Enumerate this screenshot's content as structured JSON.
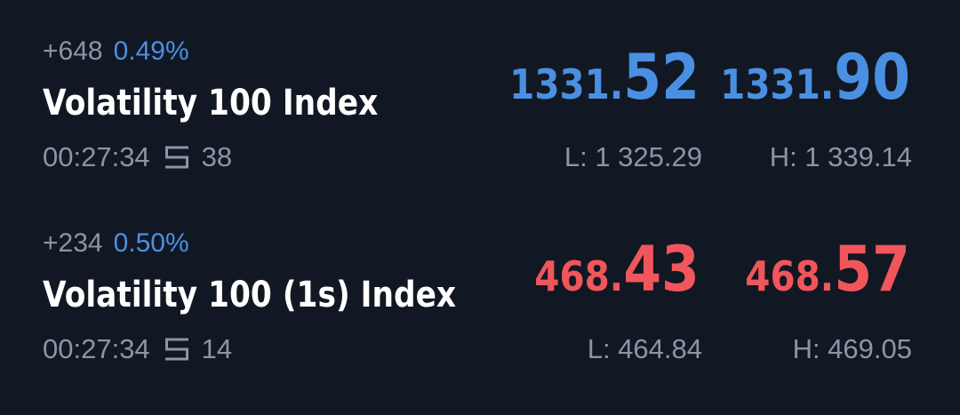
{
  "instruments": [
    {
      "change_abs": "+648",
      "change_pct": "0.49%",
      "name": "Volatility 100 Index",
      "time": "00:27:34",
      "ticks_icon": "spread-icon",
      "ticks": "38",
      "bid": {
        "main": "1331.",
        "big": "52"
      },
      "ask": {
        "main": "1331.",
        "big": "90"
      },
      "low": "L: 1 325.29",
      "high": "H: 1 339.14",
      "price_color": "#4a90e2"
    },
    {
      "change_abs": "+234",
      "change_pct": "0.50%",
      "name": "Volatility 100 (1s) Index",
      "time": "00:27:34",
      "ticks_icon": "spread-icon",
      "ticks": "14",
      "bid": {
        "main": "468.",
        "big": "43"
      },
      "ask": {
        "main": "468.",
        "big": "57"
      },
      "low": "L: 464.84",
      "high": "H: 469.05",
      "price_color": "#f0565b"
    }
  ],
  "colors": {
    "background": "#121823",
    "muted": "#8a95a6",
    "up_blue": "#4a90e2",
    "down_red": "#f0565b"
  }
}
